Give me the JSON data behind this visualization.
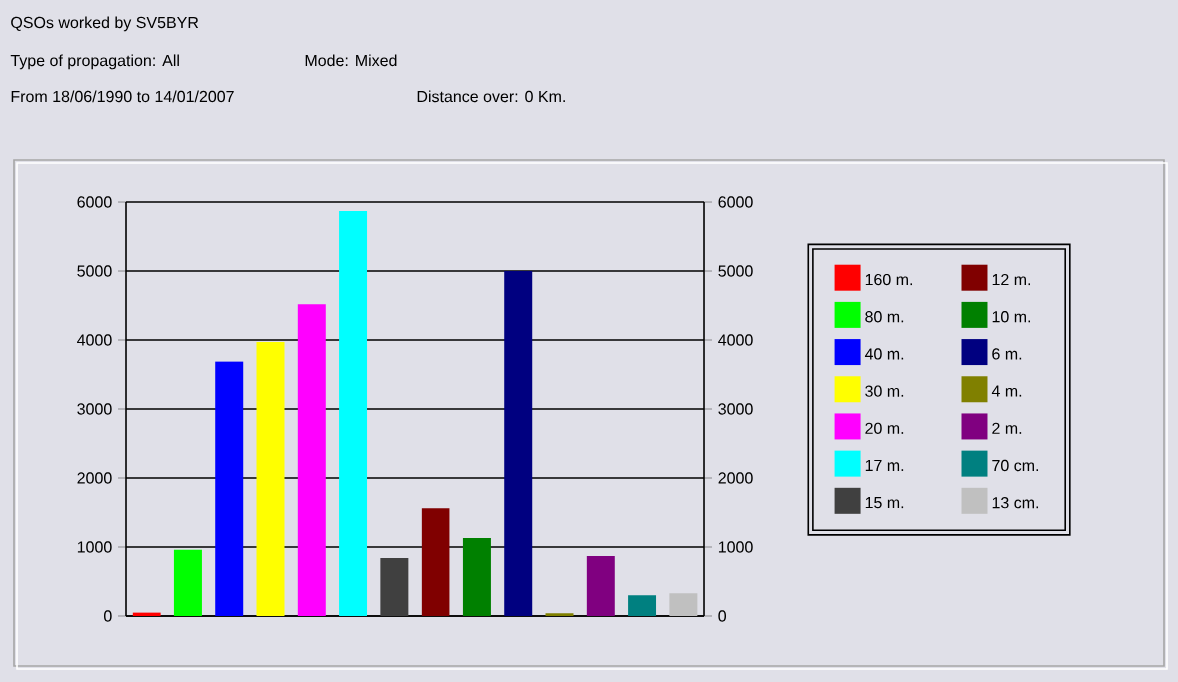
{
  "chart_data": {
    "type": "bar",
    "title": "QSOs worked by SV5BYR",
    "subtitle": "Type of propagation: All",
    "annotations": [
      "Mode: Mixed",
      "From 18/06/1990 to 14/01/2007",
      "Distance over: 0 Km."
    ],
    "categories": [
      null,
      null,
      null,
      null,
      null,
      null,
      null,
      null,
      null,
      null,
      null,
      null,
      null,
      null
    ],
    "series": [
      {
        "name": "160 m.",
        "color": "#ff0000",
        "values": [
          50,
          null,
          null,
          null,
          null,
          null,
          null,
          null,
          null,
          null,
          null,
          null,
          null,
          null
        ]
      },
      {
        "name": "80 m.",
        "color": "#00ff00",
        "values": [
          null,
          960,
          null,
          null,
          null,
          null,
          null,
          null,
          null,
          null,
          null,
          null,
          null,
          null
        ]
      },
      {
        "name": "40 m.",
        "color": "#0000ff",
        "values": [
          null,
          null,
          3690,
          null,
          null,
          null,
          null,
          null,
          null,
          null,
          null,
          null,
          null,
          null
        ]
      },
      {
        "name": "30 m.",
        "color": "#ffff00",
        "values": [
          null,
          null,
          null,
          3970,
          null,
          null,
          null,
          null,
          null,
          null,
          null,
          null,
          null,
          null
        ]
      },
      {
        "name": "20 m.",
        "color": "#ff00ff",
        "values": [
          null,
          null,
          null,
          null,
          4520,
          null,
          null,
          null,
          null,
          null,
          null,
          null,
          null,
          null
        ]
      },
      {
        "name": "17 m.",
        "color": "#00ffff",
        "values": [
          null,
          null,
          null,
          null,
          null,
          5870,
          null,
          null,
          null,
          null,
          null,
          null,
          null,
          null
        ]
      },
      {
        "name": "15 m.",
        "color": "#404040",
        "values": [
          null,
          null,
          null,
          null,
          null,
          null,
          840,
          null,
          null,
          null,
          null,
          null,
          null,
          null
        ]
      },
      {
        "name": "12 m.",
        "color": "#800000",
        "values": [
          null,
          null,
          null,
          null,
          null,
          null,
          null,
          1560,
          null,
          null,
          null,
          null,
          null,
          null
        ]
      },
      {
        "name": "10 m.",
        "color": "#008000",
        "values": [
          null,
          null,
          null,
          null,
          null,
          null,
          null,
          null,
          1130,
          null,
          null,
          null,
          null,
          null
        ]
      },
      {
        "name": "6 m.",
        "color": "#000080",
        "values": [
          null,
          null,
          null,
          null,
          null,
          null,
          null,
          null,
          null,
          5000,
          null,
          null,
          null,
          null
        ]
      },
      {
        "name": "4 m.",
        "color": "#808000",
        "values": [
          null,
          null,
          null,
          null,
          null,
          null,
          null,
          null,
          null,
          null,
          40,
          null,
          null,
          null
        ]
      },
      {
        "name": "2 m.",
        "color": "#800080",
        "values": [
          null,
          null,
          null,
          null,
          null,
          null,
          null,
          null,
          null,
          null,
          null,
          870,
          null,
          null
        ]
      },
      {
        "name": "70 cm.",
        "color": "#008080",
        "values": [
          null,
          null,
          null,
          null,
          null,
          null,
          null,
          null,
          null,
          null,
          null,
          null,
          300,
          null
        ]
      },
      {
        "name": "13 cm.",
        "color": "#c0c0c0",
        "values": [
          null,
          null,
          null,
          null,
          null,
          null,
          null,
          null,
          null,
          null,
          null,
          null,
          null,
          330
        ]
      }
    ],
    "ylim": [
      0,
      6000
    ],
    "yticks": [
      0,
      1000,
      2000,
      3000,
      4000,
      5000,
      6000
    ],
    "y2lim": [
      0,
      6000
    ],
    "y2ticks": [
      0,
      1000,
      2000,
      3000,
      4000,
      5000,
      6000
    ],
    "grid": "y",
    "legend": "right",
    "tick_labels": "y"
  }
}
